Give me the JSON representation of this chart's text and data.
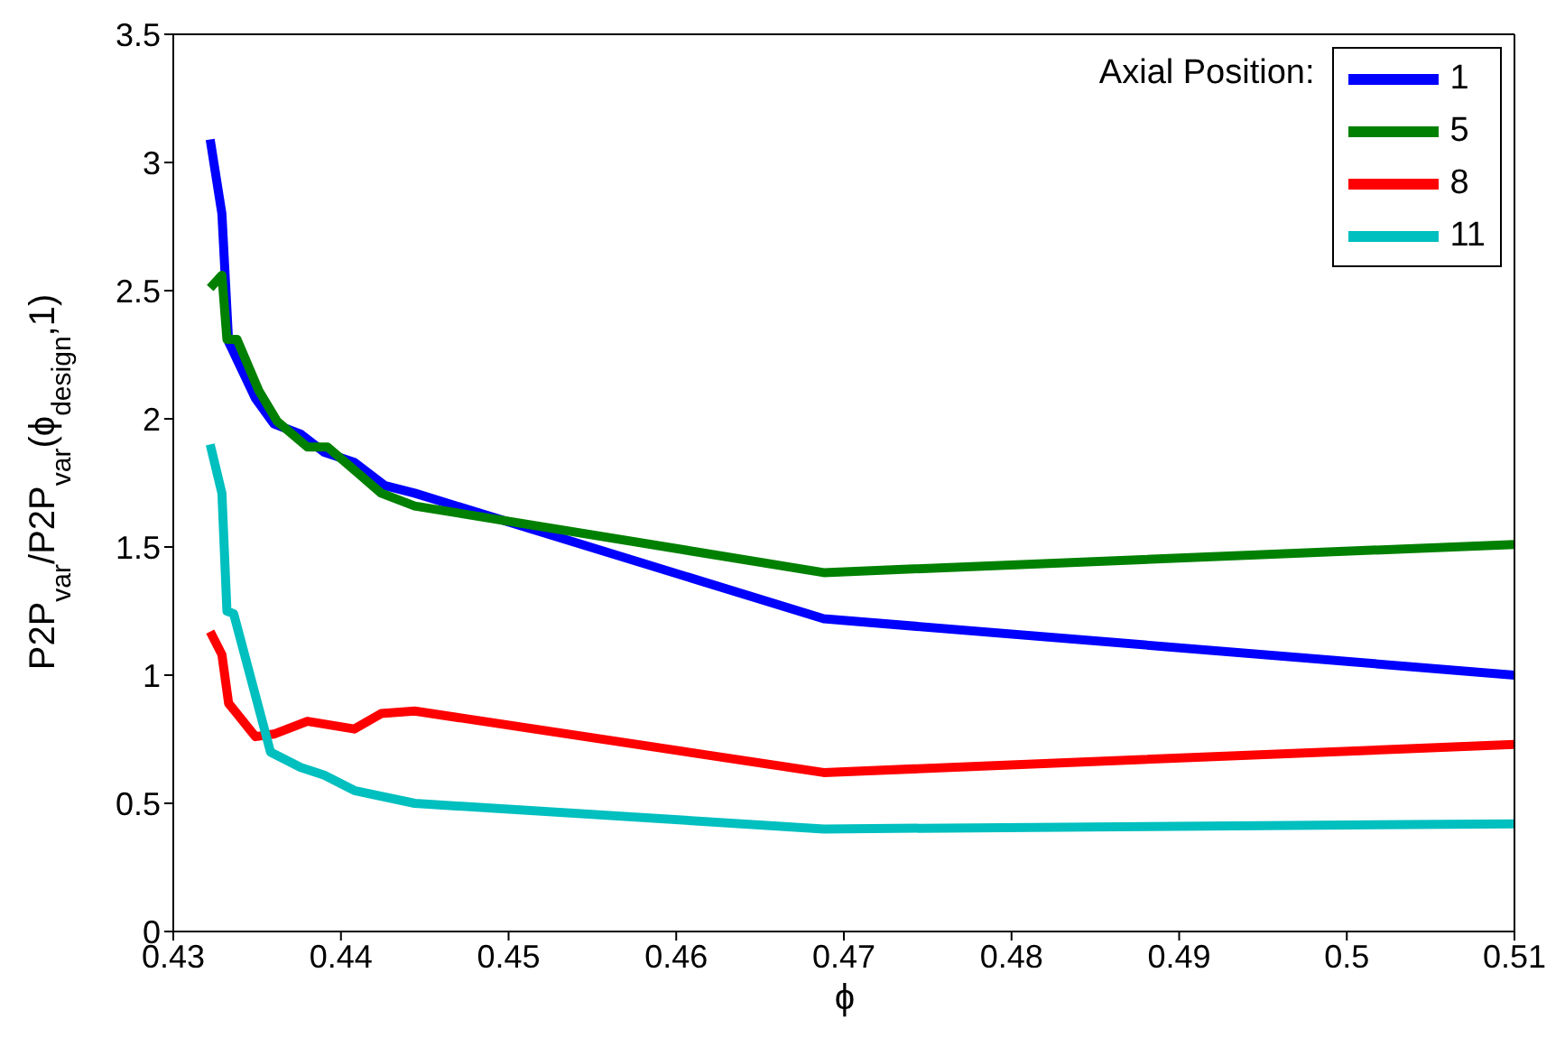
{
  "chart_data": {
    "type": "line",
    "xlabel": "ϕ",
    "ylabel": "P2P$_{var}$/P2P$_{var}$(ϕ$_{design}$,1)",
    "legend_title": "Axial Position:",
    "legend": "top right",
    "line_style": "solid",
    "marker": "none",
    "xlim": [
      0.43,
      0.51
    ],
    "xticks": [
      0.43,
      0.44,
      0.45,
      0.46,
      0.47,
      0.48,
      0.49,
      0.5,
      0.51
    ],
    "ylim": [
      0,
      3.5
    ],
    "yticks": [
      0,
      0.5,
      1,
      1.5,
      2,
      2.5,
      3,
      3.5
    ],
    "series": [
      {
        "name": "1",
        "color": "#0000ff",
        "x": [
          0.4322,
          0.4329,
          0.4333,
          0.4349,
          0.436,
          0.4376,
          0.439,
          0.4408,
          0.4426,
          0.4444,
          0.4688,
          0.51
        ],
        "values": [
          3.09,
          2.8,
          2.3,
          2.08,
          1.98,
          1.94,
          1.87,
          1.83,
          1.74,
          1.71,
          1.22,
          1.0
        ]
      },
      {
        "name": "5",
        "color": "#008000",
        "x": [
          0.4322,
          0.4329,
          0.4332,
          0.4338,
          0.4351,
          0.4362,
          0.438,
          0.4392,
          0.4408,
          0.4424,
          0.4444,
          0.4688,
          0.51
        ],
        "values": [
          2.51,
          2.56,
          2.31,
          2.31,
          2.11,
          1.99,
          1.89,
          1.89,
          1.8,
          1.71,
          1.66,
          1.4,
          1.51
        ]
      },
      {
        "name": "8",
        "color": "#ff0000",
        "x": [
          0.4322,
          0.4329,
          0.4333,
          0.4349,
          0.436,
          0.438,
          0.4408,
          0.4424,
          0.4444,
          0.4688,
          0.51
        ],
        "values": [
          1.17,
          1.08,
          0.89,
          0.76,
          0.77,
          0.82,
          0.79,
          0.85,
          0.86,
          0.62,
          0.73
        ]
      },
      {
        "name": "11",
        "color": "#00bfbf",
        "x": [
          0.4322,
          0.4329,
          0.4332,
          0.4336,
          0.4358,
          0.4376,
          0.439,
          0.4408,
          0.4444,
          0.4688,
          0.51
        ],
        "values": [
          1.9,
          1.71,
          1.25,
          1.24,
          0.7,
          0.64,
          0.61,
          0.55,
          0.5,
          0.4,
          0.42
        ]
      }
    ]
  }
}
